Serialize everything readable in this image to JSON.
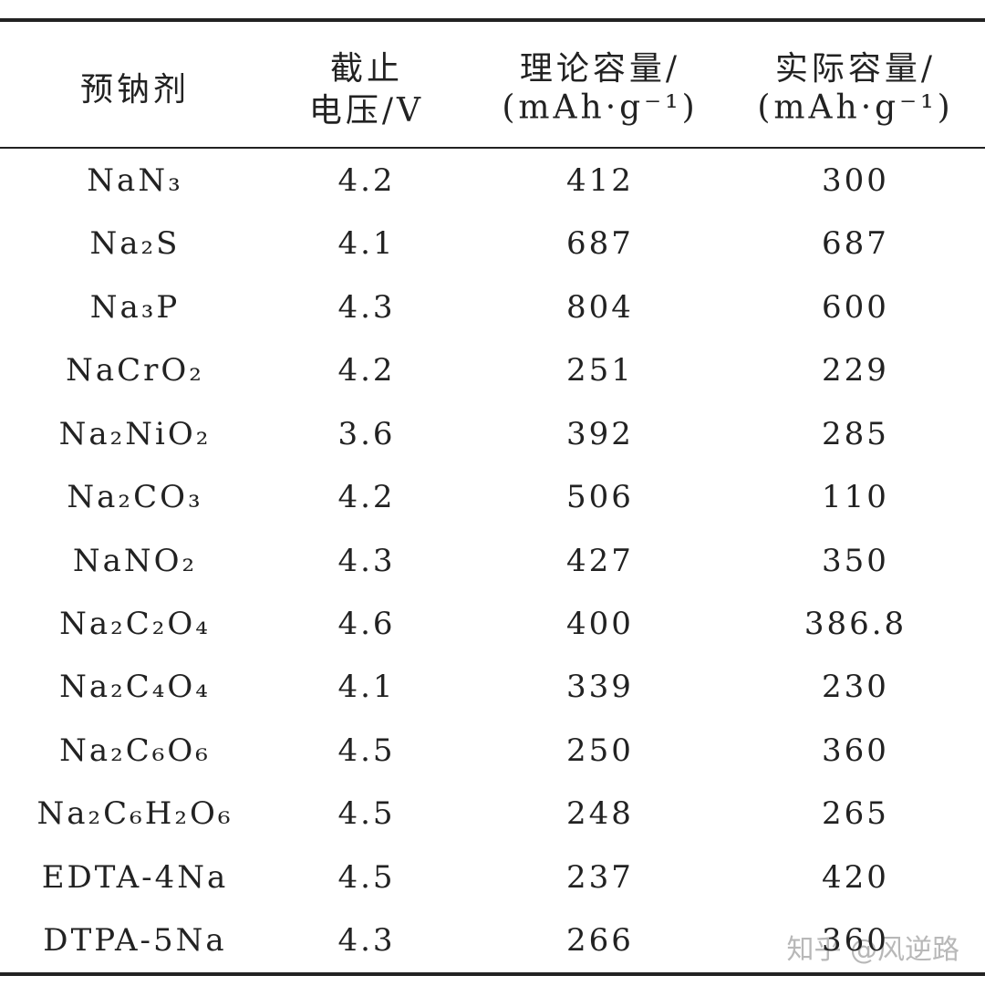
{
  "table": {
    "header": [
      [
        "预钠剂"
      ],
      [
        "截止",
        "电压/V"
      ],
      [
        "理论容量/",
        "(mAh·g⁻¹)"
      ],
      [
        "实际容量/",
        "(mAh·g⁻¹)"
      ]
    ],
    "rows": [
      [
        "NaN₃",
        "4.2",
        "412",
        "300"
      ],
      [
        "Na₂S",
        "4.1",
        "687",
        "687"
      ],
      [
        "Na₃P",
        "4.3",
        "804",
        "600"
      ],
      [
        "NaCrO₂",
        "4.2",
        "251",
        "229"
      ],
      [
        "Na₂NiO₂",
        "3.6",
        "392",
        "285"
      ],
      [
        "Na₂CO₃",
        "4.2",
        "506",
        "110"
      ],
      [
        "NaNO₂",
        "4.3",
        "427",
        "350"
      ],
      [
        "Na₂C₂O₄",
        "4.6",
        "400",
        "386.8"
      ],
      [
        "Na₂C₄O₄",
        "4.1",
        "339",
        "230"
      ],
      [
        "Na₂C₆O₆",
        "4.5",
        "250",
        "360"
      ],
      [
        "Na₂C₆H₂O₆",
        "4.5",
        "248",
        "265"
      ],
      [
        "EDTA-4Na",
        "4.5",
        "237",
        "420"
      ],
      [
        "DTPA-5Na",
        "4.3",
        "266",
        "360"
      ]
    ]
  },
  "watermark": "知乎 @风逆路"
}
